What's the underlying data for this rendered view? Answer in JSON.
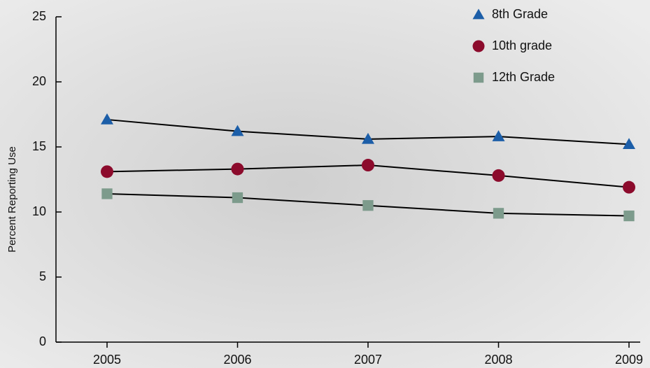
{
  "chart_data": {
    "type": "line",
    "y_label": "Percent Reporting Use",
    "categories": [
      "2005",
      "2006",
      "2007",
      "2008",
      "2009"
    ],
    "series": [
      {
        "name": "8th Grade",
        "color": "#1c5ea8",
        "marker": "triangle",
        "values": [
          17.1,
          16.2,
          15.6,
          15.8,
          15.2
        ]
      },
      {
        "name": "10th grade",
        "color": "#8c0b2c",
        "marker": "circle",
        "values": [
          13.1,
          13.3,
          13.6,
          12.8,
          11.9
        ]
      },
      {
        "name": "12th Grade",
        "color": "#7d9b8c",
        "marker": "square",
        "values": [
          11.4,
          11.1,
          10.5,
          9.9,
          9.7
        ]
      }
    ],
    "ylim": [
      0,
      25
    ],
    "yticks": [
      0,
      5,
      10,
      15,
      20,
      25
    ],
    "grid": false,
    "legend": "top-right"
  }
}
